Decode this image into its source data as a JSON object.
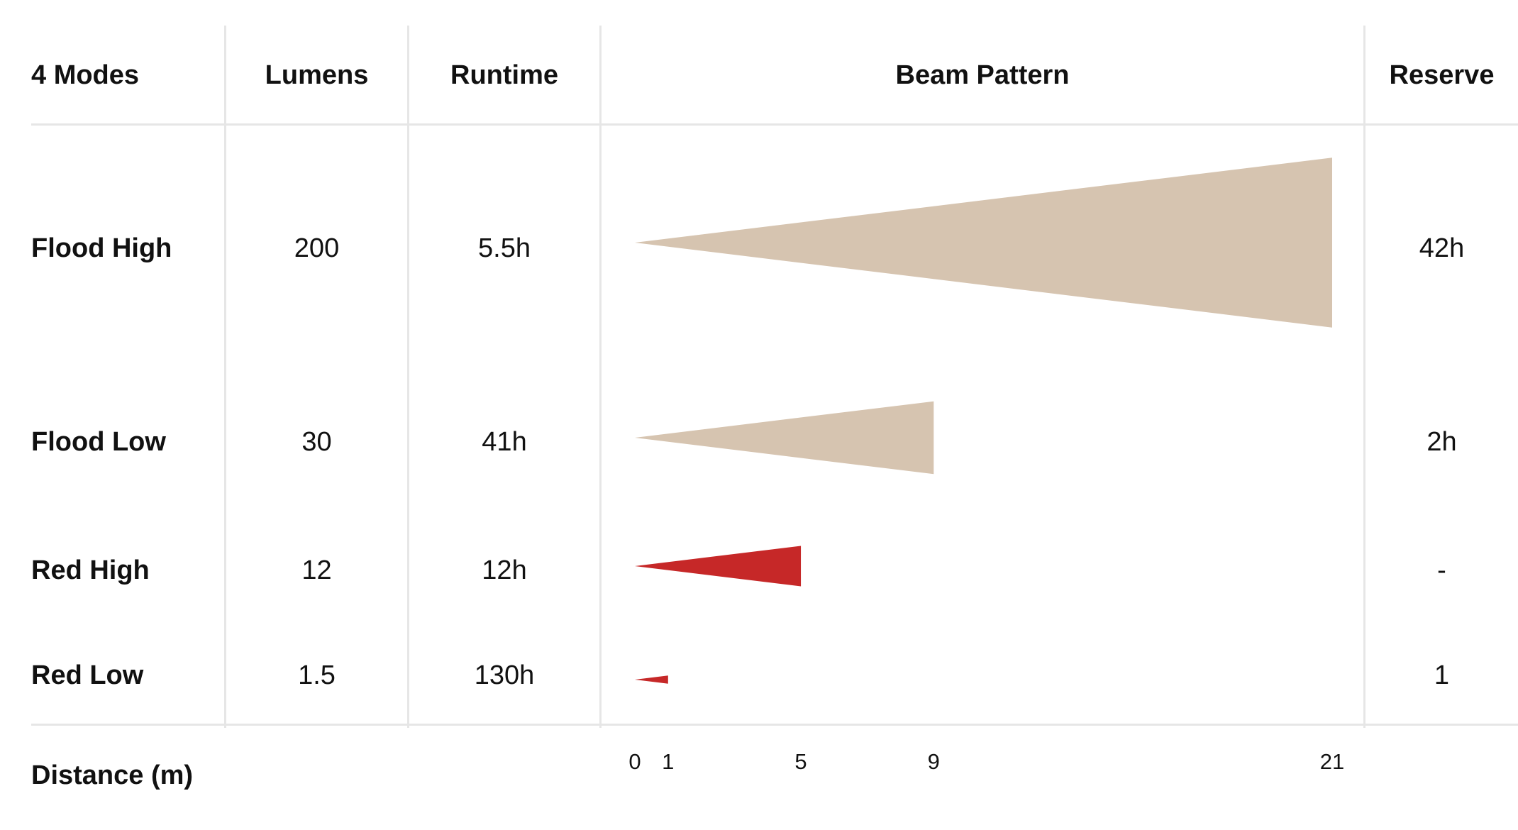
{
  "table": {
    "headers": {
      "mode": "4 Modes",
      "lumens": "Lumens",
      "runtime": "Runtime",
      "beam": "Beam Pattern",
      "reserve": "Reserve"
    },
    "rows": [
      {
        "mode": "Flood High",
        "lumens": "200",
        "runtime": "5.5h",
        "reserve": "42h"
      },
      {
        "mode": "Flood Low",
        "lumens": "30",
        "runtime": "41h",
        "reserve": "2h"
      },
      {
        "mode": "Red High",
        "lumens": "12",
        "runtime": "12h",
        "reserve": "-"
      },
      {
        "mode": "Red Low",
        "lumens": "1.5",
        "runtime": "130h",
        "reserve": "1"
      }
    ],
    "footer_label": "Distance (m)"
  },
  "chart_data": {
    "type": "bar",
    "title": "Beam Pattern",
    "xlabel": "Distance (m)",
    "x_ticks": [
      "0",
      "1",
      "5",
      "9",
      "21"
    ],
    "xlim": [
      0,
      21
    ],
    "categories": [
      "Flood High",
      "Flood Low",
      "Red High",
      "Red Low"
    ],
    "values": [
      21,
      9,
      5,
      1
    ],
    "colors": [
      "#d6c4b0",
      "#d6c4b0",
      "#c62828",
      "#c62828"
    ]
  }
}
